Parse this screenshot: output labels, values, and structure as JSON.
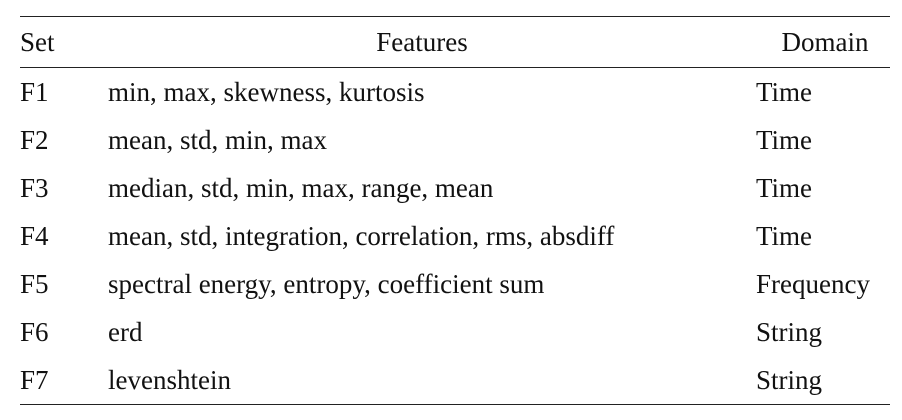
{
  "table": {
    "headers": {
      "set": "Set",
      "features": "Features",
      "domain": "Domain"
    },
    "rows": [
      {
        "set": "F1",
        "features": "min, max, skewness, kurtosis",
        "domain": "Time"
      },
      {
        "set": "F2",
        "features": "mean, std, min, max",
        "domain": "Time"
      },
      {
        "set": "F3",
        "features": "median, std, min, max, range, mean",
        "domain": "Time"
      },
      {
        "set": "F4",
        "features": "mean, std, integration, correlation, rms, absdiff",
        "domain": "Time"
      },
      {
        "set": "F5",
        "features": "spectral energy, entropy, coefficient sum",
        "domain": "Frequency"
      },
      {
        "set": "F6",
        "features": "erd",
        "domain": "String"
      },
      {
        "set": "F7",
        "features": "levenshtein",
        "domain": "String"
      }
    ]
  }
}
